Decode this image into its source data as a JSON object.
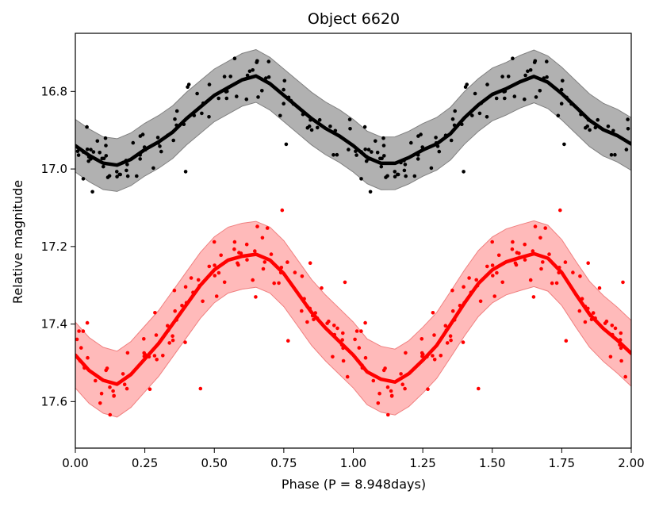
{
  "chart_data": {
    "type": "scatter",
    "title": "Object 6620",
    "xlabel": "Phase (P = 8.948days)",
    "ylabel": "Relative magnitude",
    "xlim": [
      0.0,
      2.0
    ],
    "ylim": [
      17.72,
      16.65
    ],
    "y_inverted": true,
    "grid": false,
    "xticks": [
      0.0,
      0.25,
      0.5,
      0.75,
      1.0,
      1.25,
      1.5,
      1.75,
      2.0
    ],
    "xtick_labels": [
      "0.00",
      "0.25",
      "0.50",
      "0.75",
      "1.00",
      "1.25",
      "1.50",
      "1.75",
      "2.00"
    ],
    "yticks": [
      16.8,
      17.0,
      17.2,
      17.4,
      17.6
    ],
    "ytick_labels": [
      "16.8",
      "17.0",
      "17.2",
      "17.4",
      "17.6"
    ],
    "series": [
      {
        "name": "black",
        "color": "#000000",
        "band_color": "#a9a9a9",
        "band_edge_color": "#808080",
        "band_halfwidth": 0.068,
        "points_per_cycle": 100,
        "scatter": 0.03,
        "outlier_every": 7,
        "outlier_scatter": 0.07,
        "seed": 17,
        "curve": [
          [
            0.0,
            16.94
          ],
          [
            0.05,
            16.965
          ],
          [
            0.1,
            16.985
          ],
          [
            0.15,
            16.99
          ],
          [
            0.2,
            16.975
          ],
          [
            0.25,
            16.95
          ],
          [
            0.3,
            16.93
          ],
          [
            0.35,
            16.905
          ],
          [
            0.4,
            16.87
          ],
          [
            0.45,
            16.84
          ],
          [
            0.5,
            16.81
          ],
          [
            0.55,
            16.79
          ],
          [
            0.6,
            16.77
          ],
          [
            0.65,
            16.76
          ],
          [
            0.7,
            16.78
          ],
          [
            0.75,
            16.81
          ],
          [
            0.8,
            16.84
          ],
          [
            0.85,
            16.87
          ],
          [
            0.9,
            16.895
          ],
          [
            0.95,
            16.915
          ],
          [
            1.0,
            16.94
          ]
        ]
      },
      {
        "name": "red",
        "color": "#ff0000",
        "band_color": "#ffb3b3",
        "band_edge_color": "#f08080",
        "band_halfwidth": 0.085,
        "points_per_cycle": 110,
        "scatter": 0.035,
        "outlier_every": 6,
        "outlier_scatter": 0.09,
        "seed": 29,
        "curve": [
          [
            0.0,
            17.48
          ],
          [
            0.05,
            17.52
          ],
          [
            0.1,
            17.545
          ],
          [
            0.15,
            17.555
          ],
          [
            0.2,
            17.53
          ],
          [
            0.25,
            17.49
          ],
          [
            0.3,
            17.45
          ],
          [
            0.35,
            17.4
          ],
          [
            0.4,
            17.35
          ],
          [
            0.45,
            17.3
          ],
          [
            0.5,
            17.26
          ],
          [
            0.55,
            17.235
          ],
          [
            0.6,
            17.225
          ],
          [
            0.65,
            17.22
          ],
          [
            0.7,
            17.235
          ],
          [
            0.75,
            17.27
          ],
          [
            0.8,
            17.32
          ],
          [
            0.85,
            17.37
          ],
          [
            0.9,
            17.41
          ],
          [
            0.95,
            17.445
          ],
          [
            1.0,
            17.48
          ]
        ]
      }
    ]
  }
}
